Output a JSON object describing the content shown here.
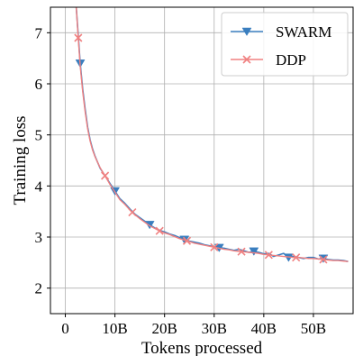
{
  "chart_data": {
    "type": "line",
    "title": "",
    "xlabel": "Tokens processed",
    "ylabel": "Training loss",
    "xlim": [
      -3,
      58
    ],
    "ylim": [
      1.5,
      7.5
    ],
    "grid": true,
    "legend_position": "top-right",
    "x_ticks": [
      0,
      10,
      20,
      30,
      40,
      50
    ],
    "x_tick_labels": [
      "0",
      "10B",
      "20B",
      "30B",
      "40B",
      "50B"
    ],
    "y_ticks": [
      2,
      3,
      4,
      5,
      6,
      7
    ],
    "y_tick_labels": [
      "2",
      "3",
      "4",
      "5",
      "6",
      "7"
    ],
    "series": [
      {
        "name": "SWARM",
        "color": "#3a7ebf",
        "marker": "triangle-down",
        "x": [
          2.2,
          2.6,
          3.0,
          3.5,
          4.0,
          4.5,
          5.0,
          5.5,
          6.0,
          7.0,
          8.0,
          9.0,
          10.0,
          11.0,
          12.0,
          13.0,
          14.0,
          15.0,
          16.0,
          17.0,
          18.0,
          19.0,
          20.0,
          21.0,
          22.0,
          23.0,
          24.0,
          25.0,
          26.0,
          27.0,
          28.0,
          29.0,
          30.0,
          31.0,
          32.0,
          33.0,
          34.0,
          35.0,
          36.0,
          37.0,
          38.0,
          39.0,
          40.0,
          41.0,
          42.0,
          43.0,
          44.0,
          45.0,
          46.0,
          47.0,
          48.0,
          49.0,
          50.0,
          51.0,
          52.0,
          53.0,
          54.0,
          55.0,
          56.0,
          57.0
        ],
        "y": [
          7.5,
          6.95,
          6.4,
          5.9,
          5.5,
          5.15,
          4.9,
          4.72,
          4.58,
          4.35,
          4.2,
          4.05,
          3.9,
          3.75,
          3.66,
          3.55,
          3.45,
          3.38,
          3.31,
          3.24,
          3.18,
          3.13,
          3.1,
          3.06,
          3.03,
          2.99,
          2.95,
          2.92,
          2.9,
          2.88,
          2.85,
          2.83,
          2.81,
          2.79,
          2.78,
          2.76,
          2.74,
          2.76,
          2.73,
          2.7,
          2.72,
          2.7,
          2.67,
          2.68,
          2.62,
          2.65,
          2.68,
          2.6,
          2.62,
          2.6,
          2.58,
          2.6,
          2.6,
          2.57,
          2.58,
          2.56,
          2.55,
          2.55,
          2.54,
          2.52
        ],
        "marker_x": [
          3.0,
          10.0,
          17.0,
          24.0,
          31.0,
          38.0,
          45.0,
          52.0
        ]
      },
      {
        "name": "DDP",
        "color": "#f08080",
        "marker": "x",
        "x": [
          2.2,
          2.6,
          3.0,
          3.5,
          4.0,
          4.5,
          5.0,
          5.5,
          6.0,
          7.0,
          8.0,
          9.0,
          10.0,
          11.0,
          12.0,
          13.0,
          14.0,
          15.0,
          16.0,
          17.0,
          18.0,
          19.0,
          20.0,
          21.0,
          22.0,
          23.0,
          24.0,
          25.0,
          26.0,
          27.0,
          28.0,
          29.0,
          30.0,
          31.0,
          32.0,
          33.0,
          34.0,
          35.0,
          36.0,
          37.0,
          38.0,
          39.0,
          40.0,
          41.0,
          42.0,
          43.0,
          44.0,
          45.0,
          46.0,
          47.0,
          48.0,
          49.0,
          50.0,
          51.0,
          52.0,
          53.0,
          54.0,
          55.0,
          56.0,
          57.0
        ],
        "y": [
          7.5,
          6.9,
          6.35,
          5.85,
          5.45,
          5.12,
          4.88,
          4.7,
          4.57,
          4.36,
          4.2,
          4.03,
          3.88,
          3.73,
          3.64,
          3.53,
          3.44,
          3.36,
          3.29,
          3.22,
          3.17,
          3.12,
          3.08,
          3.05,
          3.01,
          2.97,
          2.94,
          2.91,
          2.88,
          2.86,
          2.84,
          2.82,
          2.8,
          2.78,
          2.76,
          2.75,
          2.73,
          2.72,
          2.71,
          2.7,
          2.69,
          2.68,
          2.66,
          2.65,
          2.64,
          2.63,
          2.62,
          2.61,
          2.6,
          2.6,
          2.59,
          2.58,
          2.58,
          2.57,
          2.56,
          2.55,
          2.54,
          2.54,
          2.53,
          2.52
        ],
        "marker_x": [
          2.6,
          8.0,
          13.5,
          19.0,
          24.5,
          30.0,
          35.5,
          41.0,
          46.5,
          52.0
        ]
      }
    ]
  }
}
